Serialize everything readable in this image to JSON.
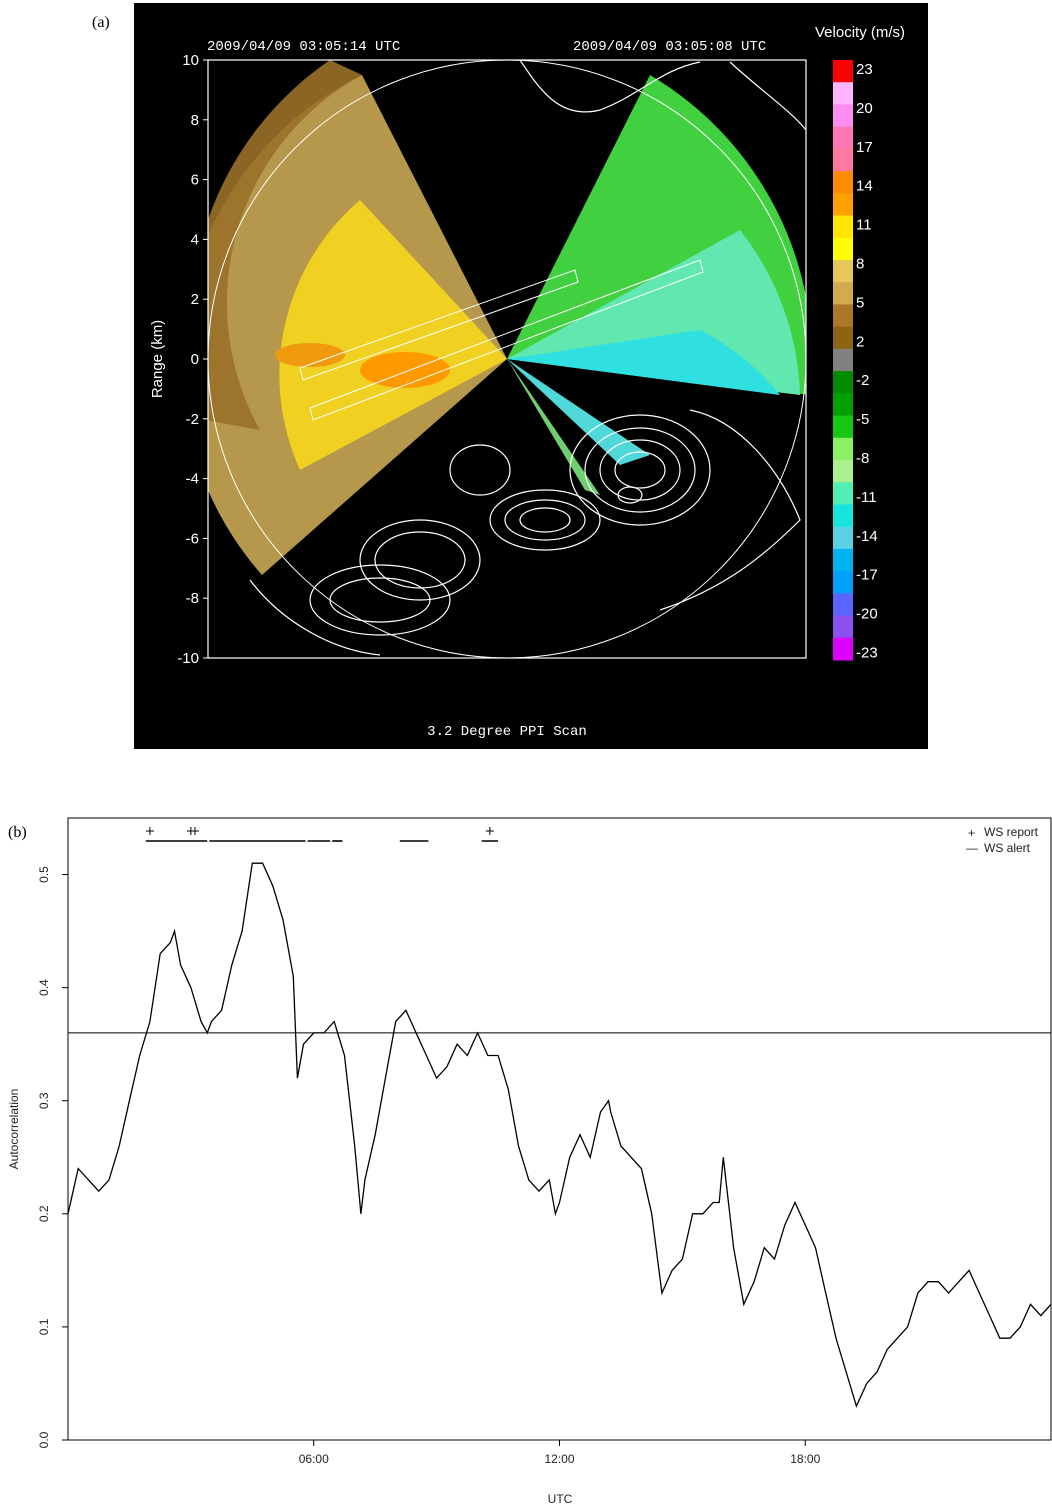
{
  "chart_data": [
    {
      "type": "heatmap",
      "panel_label": "(a)",
      "timestamp_left": "2009/04/09 03:05:14 UTC",
      "timestamp_right": "2009/04/09 03:05:08 UTC",
      "title": "3.2 Degree PPI Scan",
      "ylabel": "Range (km)",
      "ylim": [
        -10,
        10
      ],
      "xlim": [
        -10,
        10
      ],
      "yticks": [
        "10",
        "8",
        "6",
        "4",
        "2",
        "0",
        "-2",
        "-4",
        "-6",
        "-8",
        "-10"
      ],
      "colorbar": {
        "label": "Velocity (m/s)",
        "ticks": [
          "23",
          "20",
          "17",
          "14",
          "11",
          "8",
          "5",
          "2",
          "-2",
          "-5",
          "-8",
          "-11",
          "-14",
          "-17",
          "-20",
          "-23"
        ],
        "colors": [
          "#ff0000",
          "#ffb4ff",
          "#ff8cf0",
          "#ff78b4",
          "#ff78a0",
          "#ff8c00",
          "#ffa000",
          "#ffe600",
          "#ffff00",
          "#e6c85a",
          "#d2aa50",
          "#aa7828",
          "#8c6414",
          "#808080",
          "#008c00",
          "#00a000",
          "#14c814",
          "#8cf064",
          "#aaf08c",
          "#50f0b4",
          "#14e6dc",
          "#5ad2e6",
          "#00b4f0",
          "#00a0ff",
          "#5a64ff",
          "#8c50f0",
          "#dc00ff"
        ]
      }
    },
    {
      "type": "line",
      "panel_label": "(b)",
      "xlabel": "UTC",
      "ylabel": "Autocorrelation",
      "xlim": [
        0,
        24
      ],
      "ylim": [
        0.0,
        0.55
      ],
      "xticks": [
        {
          "value": 6,
          "label": "06:00"
        },
        {
          "value": 12,
          "label": "12:00"
        },
        {
          "value": 18,
          "label": "18:00"
        }
      ],
      "yticks": [
        {
          "value": 0.0,
          "label": "0.0"
        },
        {
          "value": 0.1,
          "label": "0.1"
        },
        {
          "value": 0.2,
          "label": "0.2"
        },
        {
          "value": 0.3,
          "label": "0.3"
        },
        {
          "value": 0.4,
          "label": "0.4"
        },
        {
          "value": 0.5,
          "label": "0.5"
        }
      ],
      "threshold": 0.36,
      "legend": [
        {
          "symbol": "+",
          "label": "WS report"
        },
        {
          "symbol": "—",
          "label": "WS alert"
        }
      ],
      "legend_position": "top-right",
      "ws_report_times": [
        2.0,
        3.0,
        3.1,
        10.3
      ],
      "ws_alert_intervals": [
        [
          1.9,
          3.4
        ],
        [
          3.45,
          5.8
        ],
        [
          5.85,
          6.4
        ],
        [
          6.45,
          6.7
        ],
        [
          8.1,
          8.8
        ],
        [
          10.1,
          10.5
        ]
      ],
      "series": [
        {
          "x": [
            0.0,
            0.25,
            0.5,
            0.75,
            1.0,
            1.25,
            1.5,
            1.75,
            2.0,
            2.25,
            2.5,
            2.6,
            2.75,
            3.0,
            3.25,
            3.4,
            3.5,
            3.75,
            4.0,
            4.25,
            4.5,
            4.75,
            5.0,
            5.25,
            5.5,
            5.6,
            5.75,
            6.0,
            6.25,
            6.5,
            6.75,
            7.0,
            7.15,
            7.25,
            7.5,
            7.75,
            8.0,
            8.25,
            8.5,
            8.75,
            9.0,
            9.25,
            9.5,
            9.75,
            10.0,
            10.25,
            10.5,
            10.75,
            11.0,
            11.25,
            11.5,
            11.75,
            11.9,
            12.0,
            12.25,
            12.5,
            12.75,
            13.0,
            13.2,
            13.25,
            13.5,
            13.75,
            14.0,
            14.25,
            14.5,
            14.75,
            15.0,
            15.25,
            15.5,
            15.75,
            15.9,
            16.0,
            16.25,
            16.5,
            16.75,
            17.0,
            17.25,
            17.5,
            17.75,
            18.0,
            18.25,
            18.5,
            18.75,
            19.0,
            19.25,
            19.5,
            19.75,
            20.0,
            20.25,
            20.5,
            20.75,
            21.0,
            21.25,
            21.5,
            21.75,
            22.0,
            22.25,
            22.5,
            22.75,
            23.0,
            23.25,
            23.5,
            23.75,
            24.0
          ],
          "values": [
            0.2,
            0.24,
            0.23,
            0.22,
            0.23,
            0.26,
            0.3,
            0.34,
            0.37,
            0.43,
            0.44,
            0.45,
            0.42,
            0.4,
            0.37,
            0.36,
            0.37,
            0.38,
            0.42,
            0.45,
            0.51,
            0.51,
            0.49,
            0.46,
            0.41,
            0.32,
            0.35,
            0.36,
            0.36,
            0.37,
            0.34,
            0.26,
            0.2,
            0.23,
            0.27,
            0.32,
            0.37,
            0.38,
            0.36,
            0.34,
            0.32,
            0.33,
            0.35,
            0.34,
            0.36,
            0.34,
            0.34,
            0.31,
            0.26,
            0.23,
            0.22,
            0.23,
            0.2,
            0.21,
            0.25,
            0.27,
            0.25,
            0.29,
            0.3,
            0.29,
            0.26,
            0.25,
            0.24,
            0.2,
            0.13,
            0.15,
            0.16,
            0.2,
            0.2,
            0.21,
            0.21,
            0.25,
            0.17,
            0.12,
            0.14,
            0.17,
            0.16,
            0.19,
            0.21,
            0.19,
            0.17,
            0.13,
            0.09,
            0.06,
            0.03,
            0.05,
            0.06,
            0.08,
            0.09,
            0.1,
            0.13,
            0.14,
            0.14,
            0.13,
            0.14,
            0.15,
            0.13,
            0.11,
            0.09,
            0.09,
            0.1,
            0.12,
            0.11,
            0.12
          ]
        }
      ]
    }
  ]
}
